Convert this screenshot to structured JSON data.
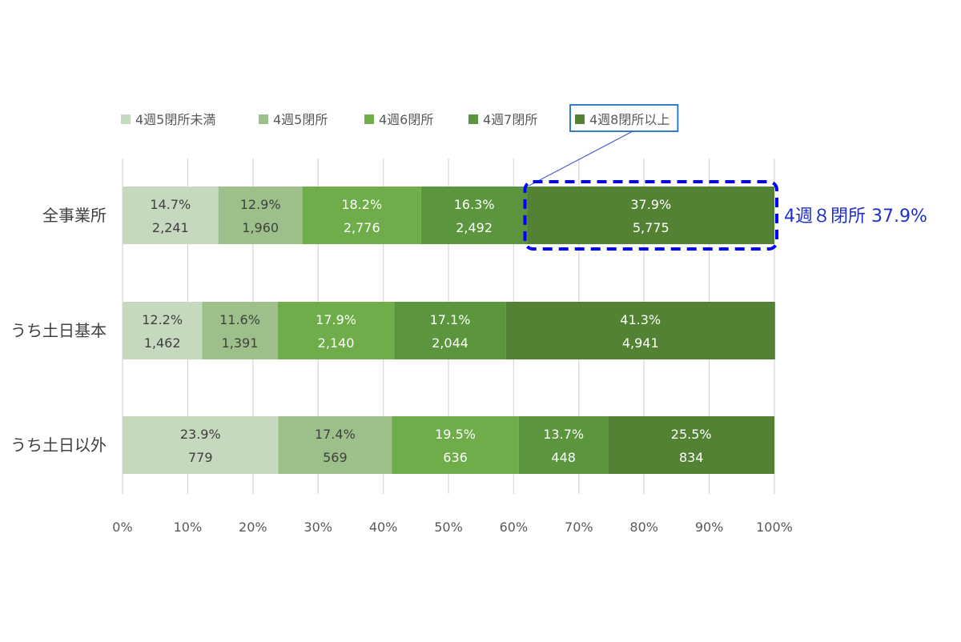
{
  "chart_data": {
    "type": "bar",
    "orientation": "horizontal",
    "stacked": true,
    "normalized_percent": true,
    "title": "",
    "xlabel": "",
    "ylabel": "",
    "xlim": [
      0,
      100
    ],
    "x_ticks": [
      "0%",
      "10%",
      "20%",
      "30%",
      "40%",
      "50%",
      "60%",
      "70%",
      "80%",
      "90%",
      "100%"
    ],
    "grid": true,
    "legend_position": "top",
    "categories": [
      "全事業所",
      "うち土日基本",
      "うち土日以外"
    ],
    "series": [
      {
        "name": "4週5閉所未満",
        "color": "#c4d9bd",
        "text_color": "#404040",
        "values": [
          14.7,
          12.2,
          23.9
        ],
        "counts": [
          "2,241",
          "1,462",
          "779"
        ]
      },
      {
        "name": "4週5閉所",
        "color": "#9dc08b",
        "text_color": "#404040",
        "values": [
          12.9,
          11.6,
          17.4
        ],
        "counts": [
          "1,960",
          "1,391",
          "569"
        ]
      },
      {
        "name": "4週6閉所",
        "color": "#6ead4a",
        "text_color": "#ffffff",
        "values": [
          18.2,
          17.9,
          19.5
        ],
        "counts": [
          "2,776",
          "2,140",
          "636"
        ]
      },
      {
        "name": "4週7閉所",
        "color": "#5b953d",
        "text_color": "#ffffff",
        "values": [
          16.3,
          17.1,
          13.7
        ],
        "counts": [
          "2,492",
          "2,044",
          "448"
        ]
      },
      {
        "name": "4週8閉所以上",
        "color": "#548235",
        "text_color": "#ffffff",
        "values": [
          37.9,
          41.3,
          25.5
        ],
        "counts": [
          "5,775",
          "4,941",
          "834"
        ]
      }
    ],
    "annotations": {
      "legend_highlight_index": 4,
      "highlight_box_color": "#1f6fbf",
      "highlight_dash_color": "#0000ff",
      "callout_text": "4週８閉所 37.9%",
      "callout_color": "#1f2fcf",
      "callout_target": {
        "category_index": 0,
        "series_index": 4
      }
    }
  }
}
